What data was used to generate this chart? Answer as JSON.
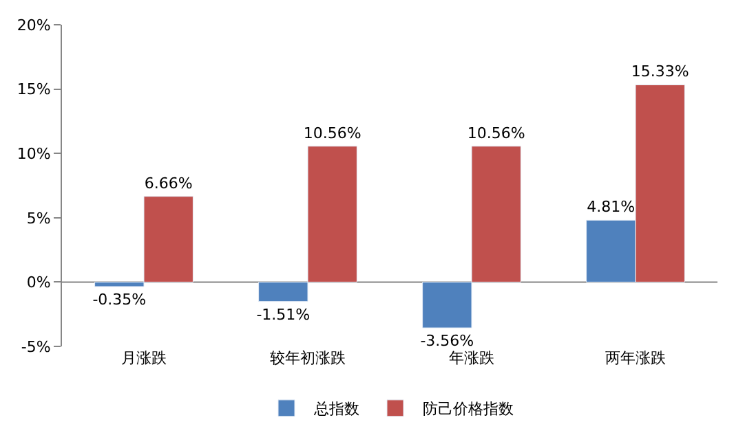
{
  "chart_data": {
    "type": "bar",
    "categories": [
      "月涨跌",
      "较年初涨跌",
      "年涨跌",
      "两年涨跌"
    ],
    "series": [
      {
        "name": "总指数",
        "color": "#4f81bd",
        "values": [
          -0.35,
          -1.51,
          -3.56,
          4.81
        ],
        "value_labels": [
          "-0.35%",
          "-1.51%",
          "-3.56%",
          "4.81%"
        ]
      },
      {
        "name": "防己价格指数",
        "color": "#c0504d",
        "values": [
          6.66,
          10.56,
          10.56,
          15.33
        ],
        "value_labels": [
          "6.66%",
          "10.56%",
          "10.56%",
          "15.33%"
        ]
      }
    ],
    "ylim": [
      -5,
      20
    ],
    "yticks": [
      {
        "value": -5,
        "label": "-5%"
      },
      {
        "value": 0,
        "label": "0%"
      },
      {
        "value": 5,
        "label": "5%"
      },
      {
        "value": 10,
        "label": "10%"
      },
      {
        "value": 15,
        "label": "15%"
      },
      {
        "value": 20,
        "label": "20%"
      }
    ],
    "grid": false,
    "ref_lines": [
      {
        "axis": "y",
        "value": 0,
        "color": "#868686"
      }
    ],
    "legend": "bottom"
  }
}
